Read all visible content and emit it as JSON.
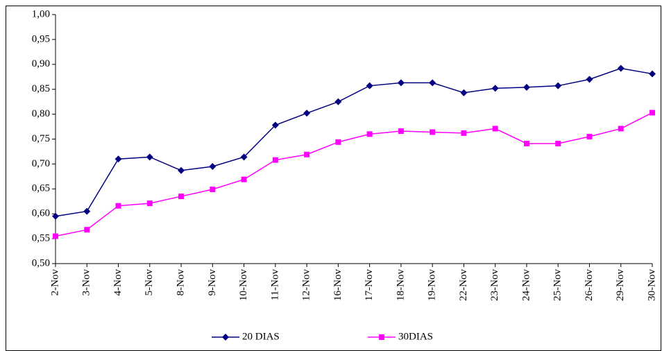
{
  "chart_data": {
    "type": "line",
    "categories": [
      "2-Nov",
      "3-Nov",
      "4-Nov",
      "5-Nov",
      "8-Nov",
      "9-Nov",
      "10-Nov",
      "11-Nov",
      "12-Nov",
      "16-Nov",
      "17-Nov",
      "18-Nov",
      "19-Nov",
      "22-Nov",
      "23-Nov",
      "24-Nov",
      "25-Nov",
      "26-Nov",
      "29-Nov",
      "30-Nov"
    ],
    "series": [
      {
        "name": "20 DIAS",
        "color": "#000080",
        "marker": "diamond",
        "values": [
          0.595,
          0.605,
          0.71,
          0.714,
          0.687,
          0.695,
          0.714,
          0.778,
          0.802,
          0.825,
          0.857,
          0.863,
          0.863,
          0.843,
          0.852,
          0.854,
          0.857,
          0.87,
          0.892,
          0.881
        ]
      },
      {
        "name": "30DIAS",
        "color": "#ff00ff",
        "marker": "square",
        "values": [
          0.555,
          0.568,
          0.616,
          0.621,
          0.635,
          0.649,
          0.669,
          0.708,
          0.719,
          0.744,
          0.76,
          0.766,
          0.764,
          0.762,
          0.771,
          0.741,
          0.741,
          0.755,
          0.771,
          0.803
        ]
      }
    ],
    "ylim": [
      0.5,
      1.0
    ],
    "yticks": [
      {
        "value": 0.5,
        "label": "0,50"
      },
      {
        "value": 0.55,
        "label": "0,55"
      },
      {
        "value": 0.6,
        "label": "0,60"
      },
      {
        "value": 0.65,
        "label": "0,65"
      },
      {
        "value": 0.7,
        "label": "0,70"
      },
      {
        "value": 0.75,
        "label": "0,75"
      },
      {
        "value": 0.8,
        "label": "0,80"
      },
      {
        "value": 0.85,
        "label": "0,85"
      },
      {
        "value": 0.9,
        "label": "0,90"
      },
      {
        "value": 0.95,
        "label": "0,95"
      },
      {
        "value": 1.0,
        "label": "1,00"
      }
    ],
    "grid": false,
    "legend": "bottom"
  }
}
